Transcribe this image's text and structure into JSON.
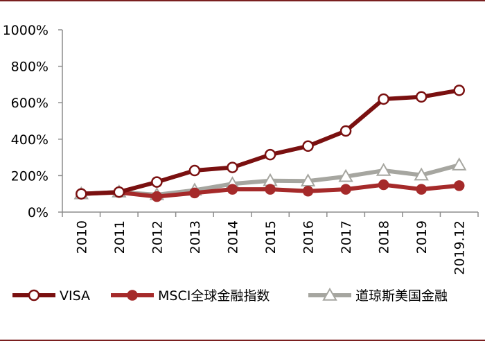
{
  "chart_data": {
    "type": "line",
    "title": "",
    "xlabel": "",
    "ylabel": "",
    "categories": [
      "2010",
      "2011",
      "2012",
      "2013",
      "2014",
      "2015",
      "2016",
      "2017",
      "2018",
      "2019",
      "2019.12"
    ],
    "ylim": [
      0,
      1000
    ],
    "yticks": [
      "0%",
      "200%",
      "400%",
      "600%",
      "800%",
      "1000%"
    ],
    "grid": false,
    "legend": "bottom",
    "series": [
      {
        "name": "VISA",
        "color": "#7a1010",
        "marker": "open-circle",
        "values": [
          100,
          110,
          165,
          228,
          245,
          315,
          362,
          445,
          620,
          632,
          668
        ]
      },
      {
        "name": "MSCI全球金融指数",
        "color": "#a52a2a",
        "marker": "filled-circle",
        "values": [
          100,
          108,
          85,
          105,
          125,
          125,
          115,
          125,
          150,
          125,
          145
        ]
      },
      {
        "name": "道琼斯美国金融",
        "color": "#a6a6a0",
        "marker": "open-triangle",
        "values": [
          100,
          110,
          95,
          120,
          155,
          172,
          170,
          195,
          228,
          203,
          258
        ]
      }
    ]
  }
}
